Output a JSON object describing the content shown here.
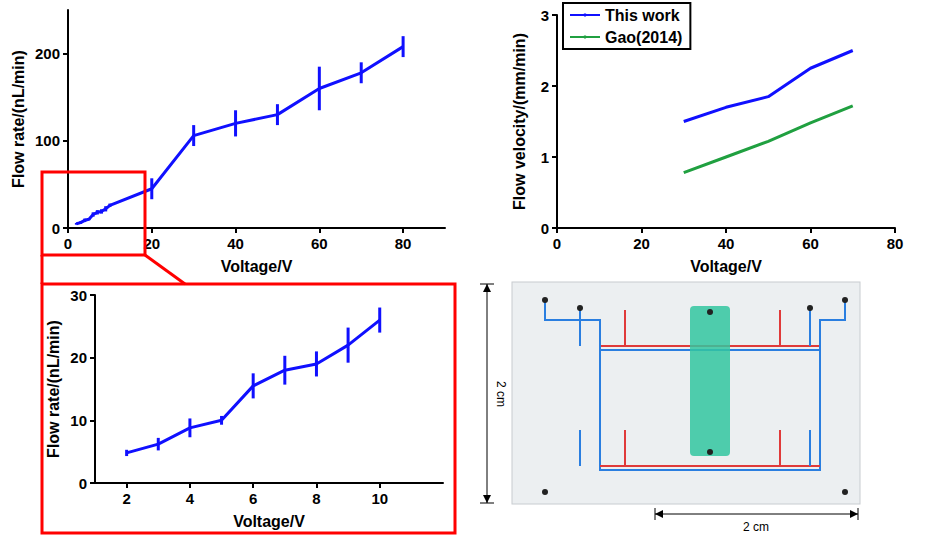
{
  "chart_data": [
    {
      "type": "line",
      "x_label": "Voltage/V",
      "y_label": "Flow rate/(nL/min)",
      "x": [
        2,
        3,
        4,
        5,
        6,
        7,
        8,
        9,
        10,
        20,
        30,
        40,
        50,
        60,
        70,
        80
      ],
      "values": [
        4.8,
        6.2,
        8.8,
        10,
        15.5,
        18,
        19,
        22,
        26,
        45,
        106,
        120,
        130,
        160,
        178,
        208
      ],
      "errors": [
        1,
        1.5,
        2,
        1,
        2.5,
        2.5,
        2.5,
        3,
        2,
        12,
        12,
        15,
        12,
        25,
        12,
        12
      ],
      "color": "#1010ff",
      "xlim": [
        0,
        90
      ],
      "xticks": [
        0,
        20,
        40,
        60,
        80
      ],
      "ylim": [
        0,
        250
      ],
      "yticks": [
        0,
        100,
        200
      ],
      "grid": false
    },
    {
      "type": "line",
      "x_label": "Voltage/V",
      "y_label": "Flow rate/(nL/min)",
      "x": [
        2,
        3,
        4,
        5,
        6,
        7,
        8,
        9,
        10
      ],
      "values": [
        4.8,
        6.2,
        8.8,
        10,
        15.5,
        18,
        19,
        22,
        26
      ],
      "errors": [
        0.5,
        1,
        1.5,
        0.7,
        2,
        2.3,
        2,
        2.8,
        2
      ],
      "color": "#1010ff",
      "xlim": [
        1,
        12
      ],
      "xticks": [
        2,
        4,
        6,
        8,
        10
      ],
      "ylim": [
        0,
        30
      ],
      "yticks": [
        0,
        10,
        20,
        30
      ],
      "grid": false
    },
    {
      "type": "line",
      "x_label": "Voltage/V",
      "y_label": "Flow velocity/(mm/min)",
      "x": [
        30,
        40,
        50,
        60,
        70
      ],
      "series": [
        {
          "name": "This work",
          "color": "#1010ff",
          "values": [
            1.5,
            1.7,
            1.85,
            2.25,
            2.5
          ]
        },
        {
          "name": "Gao(2014)",
          "color": "#20a040",
          "values": [
            0.78,
            1.0,
            1.22,
            1.48,
            1.72
          ]
        }
      ],
      "xlim": [
        0,
        80
      ],
      "xticks": [
        0,
        20,
        40,
        60,
        80
      ],
      "ylim": [
        0,
        3
      ],
      "yticks": [
        0,
        1,
        2,
        3
      ],
      "legend": "upper left",
      "grid": false
    }
  ],
  "photo": {
    "width_label": "2 cm",
    "height_label": "2 cm"
  }
}
